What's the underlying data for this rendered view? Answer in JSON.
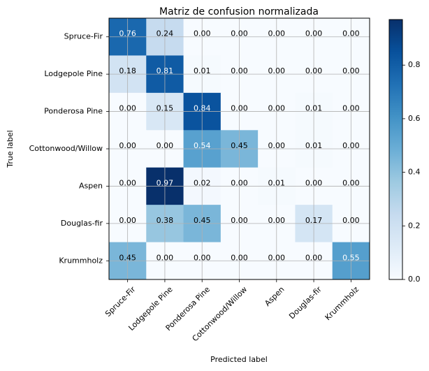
{
  "chart_data": {
    "type": "heatmap",
    "title": "Matriz de confusion normalizada",
    "xlabel": "Predicted label",
    "ylabel": "True label",
    "row_labels": [
      "Spruce-Fir",
      "Lodgepole Pine",
      "Ponderosa Pine",
      "Cottonwood/Willow",
      "Aspen",
      "Douglas-fir",
      "Krummholz"
    ],
    "col_labels": [
      "Spruce-Fir",
      "Lodgepole Pine",
      "Ponderosa Pine",
      "Cottonwood/Willow",
      "Aspen",
      "Douglas-fir",
      "Krummholz"
    ],
    "values": [
      [
        0.76,
        0.24,
        0.0,
        0.0,
        0.0,
        0.0,
        0.0
      ],
      [
        0.18,
        0.81,
        0.01,
        0.0,
        0.0,
        0.0,
        0.0
      ],
      [
        0.0,
        0.15,
        0.84,
        0.0,
        0.0,
        0.01,
        0.0
      ],
      [
        0.0,
        0.0,
        0.54,
        0.45,
        0.0,
        0.01,
        0.0
      ],
      [
        0.0,
        0.97,
        0.02,
        0.0,
        0.01,
        0.0,
        0.0
      ],
      [
        0.0,
        0.38,
        0.45,
        0.0,
        0.0,
        0.17,
        0.0
      ],
      [
        0.45,
        0.0,
        0.0,
        0.0,
        0.0,
        0.0,
        0.55
      ]
    ],
    "value_format": "0.00",
    "colormap": "Blues",
    "colorbar": {
      "range": [
        0.0,
        0.97
      ],
      "ticks": [
        0.0,
        0.2,
        0.4,
        0.6,
        0.8
      ],
      "tick_labels": [
        "0.0",
        "0.2",
        "0.4",
        "0.6",
        "0.8"
      ]
    },
    "grid": true
  }
}
